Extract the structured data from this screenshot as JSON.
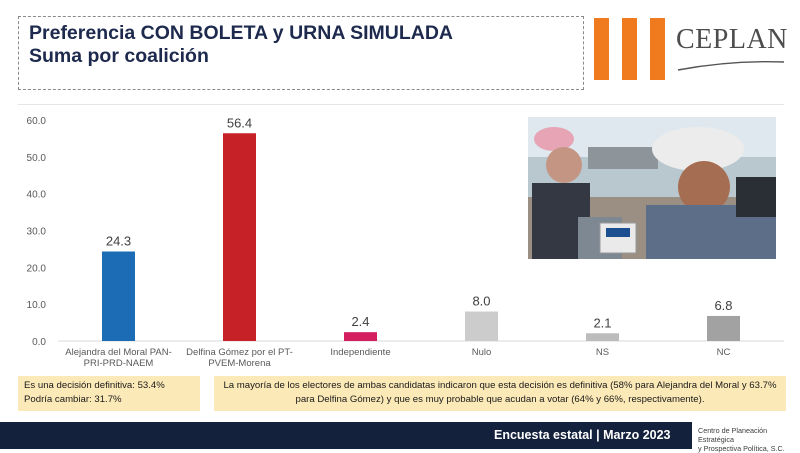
{
  "header": {
    "title_line1": "Preferencia CON BOLETA y URNA SIMULADA",
    "title_line2": "Suma por coalición"
  },
  "logo": {
    "text": "CEPLAN",
    "bar_color": "#f07a1e"
  },
  "chart_data": {
    "type": "bar",
    "categories": [
      "Alejandra del Moral PAN-PRI-PRD-NAEM",
      "Delfina Gómez por el PT-PVEM-Morena",
      "Independiente",
      "Nulo",
      "NS",
      "NC"
    ],
    "category_lines": [
      [
        "Alejandra del Moral PAN-",
        "PRI-PRD-NAEM"
      ],
      [
        "Delfina Gómez por el PT-",
        "PVEM-Morena"
      ],
      [
        "Independiente"
      ],
      [
        "Nulo"
      ],
      [
        "NS"
      ],
      [
        "NC"
      ]
    ],
    "values": [
      24.3,
      56.4,
      2.4,
      8.0,
      2.1,
      6.8
    ],
    "value_labels": [
      "24.3",
      "56.4",
      "2.4",
      "8.0",
      "2.1",
      "6.8"
    ],
    "colors": [
      "#1c6cb5",
      "#c62127",
      "#d31f5e",
      "#cccccc",
      "#bcbcbc",
      "#a2a2a2"
    ],
    "ylim": [
      0,
      60
    ],
    "yticks": [
      "0.0",
      "10.0",
      "20.0",
      "30.0",
      "40.0",
      "50.0",
      "60.0"
    ],
    "title": "",
    "xlabel": "",
    "ylabel": "",
    "grid": false,
    "legend": "none"
  },
  "notes": {
    "left_line1": "Es una decisión definitiva: 53.4%",
    "left_line2": "Podría cambiar: 31.7%",
    "right": "La mayoría de los electores de ambas candidatas indicaron que esta decisión es definitiva (58% para Alejandra del Moral y 63.7% para Delfina Gómez) y que es muy probable que acudan a votar (64% y 66%, respectivamente)."
  },
  "footer": {
    "title": "Encuesta estatal | Marzo 2023",
    "org_line1": "Centro de Planeación Estratégica",
    "org_line2": "y Prospectiva Política, S.C."
  }
}
